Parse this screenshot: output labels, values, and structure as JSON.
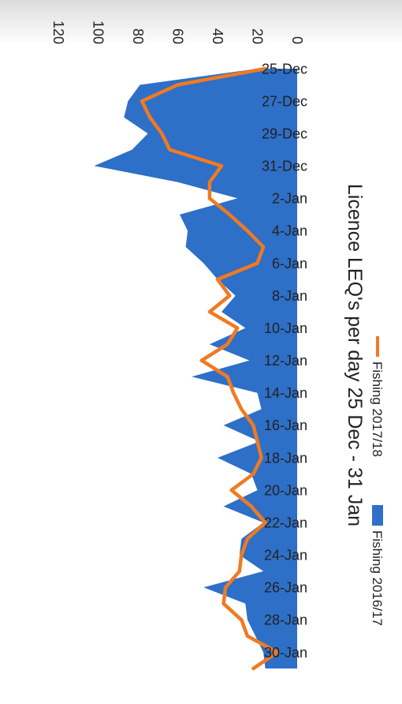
{
  "chart_data": {
    "type": "area",
    "title": "Licence LEQ's per day 25 Dec - 31 Jan",
    "orientation": "rotated-90-clockwise",
    "ylim": [
      0,
      120
    ],
    "yticks": [
      0,
      20,
      40,
      60,
      80,
      100,
      120
    ],
    "grid": false,
    "legend_position": "bottom",
    "x_tick_labels": [
      "25-Dec",
      "27-Dec",
      "29-Dec",
      "31-Dec",
      "2-Jan",
      "4-Jan",
      "6-Jan",
      "8-Jan",
      "10-Jan",
      "12-Jan",
      "14-Jan",
      "16-Jan",
      "18-Jan",
      "20-Jan",
      "22-Jan",
      "24-Jan",
      "26-Jan",
      "28-Jan",
      "30-Jan"
    ],
    "x": [
      "25-Dec",
      "26-Dec",
      "27-Dec",
      "28-Dec",
      "29-Dec",
      "30-Dec",
      "31-Dec",
      "1-Jan",
      "2-Jan",
      "3-Jan",
      "4-Jan",
      "5-Jan",
      "6-Jan",
      "7-Jan",
      "8-Jan",
      "9-Jan",
      "10-Jan",
      "11-Jan",
      "12-Jan",
      "13-Jan",
      "14-Jan",
      "15-Jan",
      "16-Jan",
      "17-Jan",
      "18-Jan",
      "19-Jan",
      "20-Jan",
      "21-Jan",
      "22-Jan",
      "23-Jan",
      "24-Jan",
      "25-Jan",
      "26-Jan",
      "27-Jan",
      "28-Jan",
      "29-Jan",
      "30-Jan",
      "31-Jan"
    ],
    "series": [
      {
        "name": "Fishing 2016/17",
        "style": "area",
        "color": "#2e6fc7",
        "values": [
          20,
          79,
          85,
          87,
          75,
          83,
          102,
          60,
          30,
          59,
          55,
          56,
          47,
          40,
          31,
          38,
          26,
          44,
          24,
          53,
          20,
          18,
          37,
          19,
          40,
          23,
          20,
          37,
          17,
          28,
          29,
          17,
          47,
          26,
          25,
          21,
          17,
          16
        ]
      },
      {
        "name": "Fishing 2017/18",
        "style": "line",
        "color": "#f07a22",
        "values": [
          16,
          60,
          78,
          74,
          68,
          64,
          38,
          44,
          44,
          34,
          25,
          17,
          20,
          40,
          34,
          44,
          30,
          35,
          48,
          35,
          32,
          28,
          22,
          20,
          18,
          22,
          33,
          23,
          16,
          25,
          28,
          29,
          36,
          37,
          28,
          25,
          10,
          22
        ]
      }
    ]
  }
}
